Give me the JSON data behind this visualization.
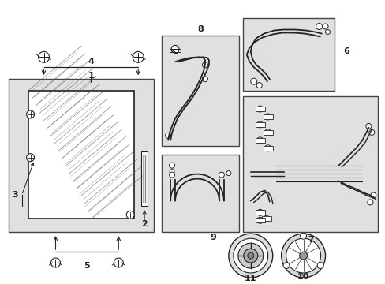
{
  "bg_color": "#ffffff",
  "diagram_bg": "#e0e0e0",
  "line_color": "#222222",
  "box_line_color": "#444444",
  "fig_w": 4.89,
  "fig_h": 3.6,
  "dpi": 100
}
